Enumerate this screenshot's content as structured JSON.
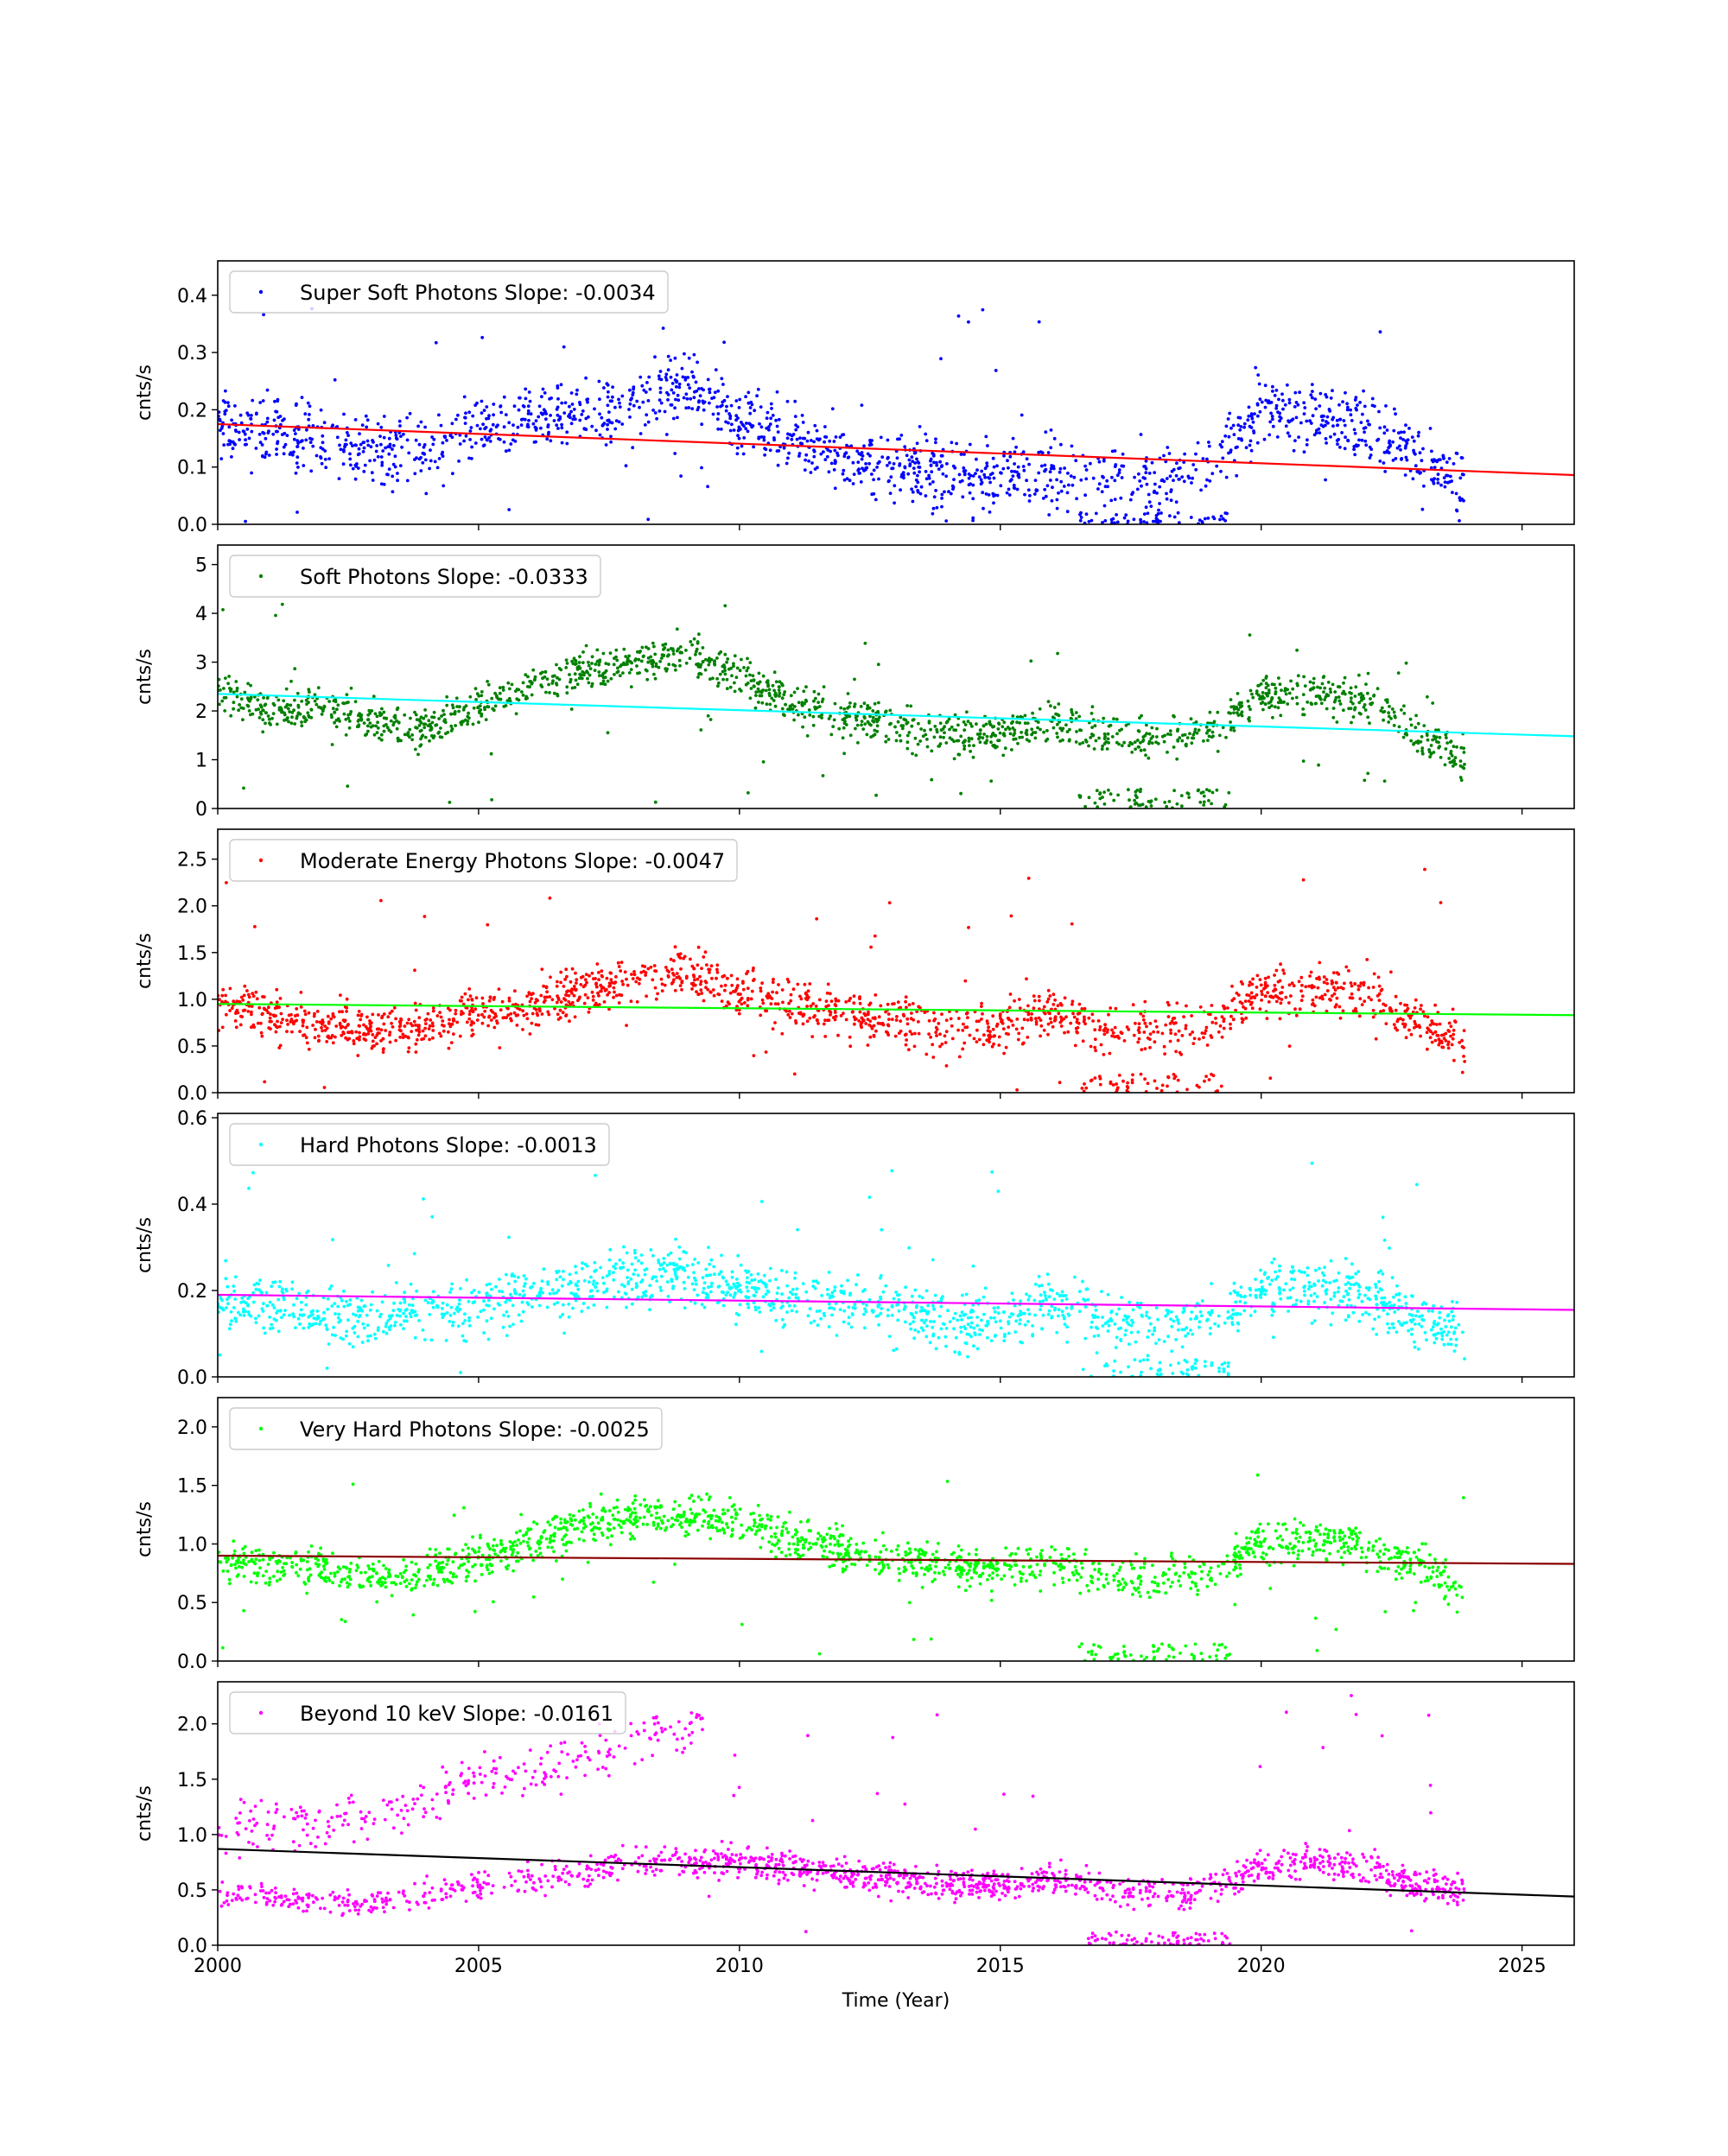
{
  "figure": {
    "xlabel": "Time (Year)",
    "x_ticks": [
      2000,
      2005,
      2010,
      2015,
      2020,
      2025
    ],
    "xlim": [
      2000,
      2026
    ]
  },
  "chart_data": [
    {
      "type": "scatter",
      "legend_label": "Super Soft Photons Slope: -0.0034",
      "legend_placement": "top-left",
      "point_color": "#0000ff",
      "fit_color": "#ff0000",
      "ylabel": "cnts/s",
      "ylim": [
        0,
        0.46
      ],
      "y_ticks": [
        0.0,
        0.1,
        0.2,
        0.3,
        0.4
      ],
      "tick_decimals": 1,
      "fit": {
        "x": [
          2000,
          2026
        ],
        "y": [
          0.175,
          0.086
        ]
      },
      "trend": [
        [
          2000,
          0.17
        ],
        [
          2001,
          0.16
        ],
        [
          2002,
          0.15
        ],
        [
          2003,
          0.12
        ],
        [
          2004,
          0.13
        ],
        [
          2005,
          0.17
        ],
        [
          2006,
          0.18
        ],
        [
          2007,
          0.19
        ],
        [
          2008,
          0.21
        ],
        [
          2009,
          0.25
        ],
        [
          2010,
          0.18
        ],
        [
          2011,
          0.15
        ],
        [
          2012,
          0.12
        ],
        [
          2013,
          0.1
        ],
        [
          2014,
          0.085
        ],
        [
          2015,
          0.085
        ],
        [
          2016,
          0.09
        ],
        [
          2017,
          0.08
        ],
        [
          2018,
          0.07
        ],
        [
          2019,
          0.08
        ],
        [
          2020,
          0.2
        ],
        [
          2021,
          0.19
        ],
        [
          2022,
          0.17
        ],
        [
          2023,
          0.11
        ],
        [
          2023.9,
          0.07
        ]
      ],
      "spread": 0.05,
      "low_cluster": [
        2016.5,
        2019.4,
        0.0,
        0.02
      ],
      "outlier_y": 0.38,
      "seed": 11
    },
    {
      "type": "scatter",
      "legend_label": "Soft Photons Slope: -0.0333",
      "legend_placement": "top-left",
      "point_color": "#008000",
      "fit_color": "#00ffff",
      "ylabel": "cnts/s",
      "ylim": [
        0,
        5.4
      ],
      "y_ticks": [
        0,
        1,
        2,
        3,
        4,
        5
      ],
      "tick_decimals": 0,
      "fit": {
        "x": [
          2000,
          2026
        ],
        "y": [
          2.35,
          1.48
        ]
      },
      "trend": [
        [
          2000,
          2.4
        ],
        [
          2001,
          2.0
        ],
        [
          2002,
          2.1
        ],
        [
          2003,
          1.8
        ],
        [
          2004,
          1.6
        ],
        [
          2005,
          2.2
        ],
        [
          2006,
          2.5
        ],
        [
          2007,
          2.8
        ],
        [
          2008,
          3.0
        ],
        [
          2009,
          3.2
        ],
        [
          2010,
          2.7
        ],
        [
          2011,
          2.2
        ],
        [
          2012,
          1.9
        ],
        [
          2013,
          1.7
        ],
        [
          2014,
          1.5
        ],
        [
          2015,
          1.5
        ],
        [
          2016,
          1.8
        ],
        [
          2017,
          1.5
        ],
        [
          2018,
          1.4
        ],
        [
          2019,
          1.6
        ],
        [
          2020,
          2.3
        ],
        [
          2021,
          2.4
        ],
        [
          2022,
          2.2
        ],
        [
          2023,
          1.5
        ],
        [
          2023.9,
          1.0
        ]
      ],
      "spread": 0.35,
      "low_cluster": [
        2016.5,
        2019.4,
        0.0,
        0.4
      ],
      "outlier_y": 4.2,
      "seed": 23
    },
    {
      "type": "scatter",
      "legend_label": "Moderate Energy Photons Slope: -0.0047",
      "legend_placement": "top-left",
      "point_color": "#ff0000",
      "fit_color": "#00ff00",
      "ylabel": "cnts/s",
      "ylim": [
        0,
        2.82
      ],
      "y_ticks": [
        0.0,
        0.5,
        1.0,
        1.5,
        2.0,
        2.5
      ],
      "tick_decimals": 1,
      "fit": {
        "x": [
          2000,
          2026
        ],
        "y": [
          0.95,
          0.83
        ]
      },
      "trend": [
        [
          2000,
          0.95
        ],
        [
          2001,
          0.8
        ],
        [
          2002,
          0.75
        ],
        [
          2003,
          0.65
        ],
        [
          2004,
          0.7
        ],
        [
          2005,
          0.85
        ],
        [
          2006,
          0.95
        ],
        [
          2007,
          1.1
        ],
        [
          2008,
          1.2
        ],
        [
          2009,
          1.3
        ],
        [
          2010,
          1.1
        ],
        [
          2011,
          0.95
        ],
        [
          2012,
          0.85
        ],
        [
          2013,
          0.75
        ],
        [
          2014,
          0.7
        ],
        [
          2015,
          0.7
        ],
        [
          2016,
          0.85
        ],
        [
          2017,
          0.65
        ],
        [
          2018,
          0.65
        ],
        [
          2019,
          0.7
        ],
        [
          2020,
          1.1
        ],
        [
          2021,
          1.1
        ],
        [
          2022,
          1.05
        ],
        [
          2023,
          0.75
        ],
        [
          2023.9,
          0.55
        ]
      ],
      "spread": 0.22,
      "low_cluster": [
        2016.5,
        2019.4,
        0.0,
        0.2
      ],
      "outlier_y": 2.4,
      "seed": 37
    },
    {
      "type": "scatter",
      "legend_label": "Hard Photons Slope: -0.0013",
      "legend_placement": "top-left",
      "point_color": "#00ffff",
      "fit_color": "#ff00ff",
      "ylabel": "cnts/s",
      "ylim": [
        0,
        0.61
      ],
      "y_ticks": [
        0.0,
        0.2,
        0.4,
        0.6
      ],
      "tick_decimals": 1,
      "fit": {
        "x": [
          2000,
          2026
        ],
        "y": [
          0.19,
          0.155
        ]
      },
      "trend": [
        [
          2000,
          0.18
        ],
        [
          2001,
          0.16
        ],
        [
          2002,
          0.15
        ],
        [
          2003,
          0.14
        ],
        [
          2004,
          0.15
        ],
        [
          2005,
          0.16
        ],
        [
          2006,
          0.19
        ],
        [
          2007,
          0.21
        ],
        [
          2008,
          0.23
        ],
        [
          2009,
          0.24
        ],
        [
          2010,
          0.2
        ],
        [
          2011,
          0.18
        ],
        [
          2012,
          0.16
        ],
        [
          2013,
          0.15
        ],
        [
          2014,
          0.13
        ],
        [
          2015,
          0.13
        ],
        [
          2016,
          0.18
        ],
        [
          2017,
          0.13
        ],
        [
          2018,
          0.12
        ],
        [
          2019,
          0.13
        ],
        [
          2020,
          0.2
        ],
        [
          2021,
          0.21
        ],
        [
          2022,
          0.19
        ],
        [
          2023,
          0.13
        ],
        [
          2023.9,
          0.11
        ]
      ],
      "spread": 0.055,
      "low_cluster": [
        2016.5,
        2019.4,
        0.0,
        0.04
      ],
      "outlier_y": 0.5,
      "seed": 41
    },
    {
      "type": "scatter",
      "legend_label": "Very Hard Photons Slope: -0.0025",
      "legend_placement": "top-left",
      "point_color": "#00ff00",
      "fit_color": "#8b0000",
      "ylabel": "cnts/s",
      "ylim": [
        0,
        2.25
      ],
      "y_ticks": [
        0.0,
        0.5,
        1.0,
        1.5,
        2.0
      ],
      "tick_decimals": 1,
      "fit": {
        "x": [
          2000,
          2026
        ],
        "y": [
          0.9,
          0.83
        ]
      },
      "trend": [
        [
          2000,
          0.85
        ],
        [
          2001,
          0.8
        ],
        [
          2002,
          0.8
        ],
        [
          2003,
          0.72
        ],
        [
          2004,
          0.75
        ],
        [
          2005,
          0.9
        ],
        [
          2006,
          1.0
        ],
        [
          2007,
          1.15
        ],
        [
          2008,
          1.25
        ],
        [
          2009,
          1.25
        ],
        [
          2010,
          1.2
        ],
        [
          2011,
          1.05
        ],
        [
          2012,
          0.95
        ],
        [
          2013,
          0.85
        ],
        [
          2014,
          0.8
        ],
        [
          2015,
          0.8
        ],
        [
          2016,
          0.85
        ],
        [
          2017,
          0.7
        ],
        [
          2018,
          0.7
        ],
        [
          2019,
          0.75
        ],
        [
          2020,
          1.0
        ],
        [
          2021,
          1.05
        ],
        [
          2022,
          1.0
        ],
        [
          2023,
          0.8
        ],
        [
          2023.9,
          0.6
        ]
      ],
      "spread": 0.15,
      "low_cluster": [
        2016.5,
        2019.4,
        0.0,
        0.15
      ],
      "outlier_y": 1.6,
      "seed": 53
    },
    {
      "type": "scatter",
      "legend_label": "Beyond 10 keV Slope: -0.0161",
      "legend_placement": "top-left",
      "point_color": "#ff00ff",
      "fit_color": "#000000",
      "ylabel": "cnts/s",
      "ylim": [
        0,
        2.38
      ],
      "y_ticks": [
        0.0,
        0.5,
        1.0,
        1.5,
        2.0
      ],
      "tick_decimals": 1,
      "fit": {
        "x": [
          2000,
          2026
        ],
        "y": [
          0.87,
          0.44
        ]
      },
      "trend": [
        [
          2000,
          0.5
        ],
        [
          2001,
          0.45
        ],
        [
          2002,
          0.4
        ],
        [
          2003,
          0.38
        ],
        [
          2004,
          0.45
        ],
        [
          2005,
          0.55
        ],
        [
          2006,
          0.6
        ],
        [
          2007,
          0.65
        ],
        [
          2008,
          0.75
        ],
        [
          2009,
          0.75
        ],
        [
          2010,
          0.75
        ],
        [
          2011,
          0.7
        ],
        [
          2012,
          0.65
        ],
        [
          2013,
          0.6
        ],
        [
          2014,
          0.55
        ],
        [
          2015,
          0.55
        ],
        [
          2016,
          0.6
        ],
        [
          2017,
          0.5
        ],
        [
          2018,
          0.45
        ],
        [
          2019,
          0.5
        ],
        [
          2020,
          0.7
        ],
        [
          2021,
          0.75
        ],
        [
          2022,
          0.7
        ],
        [
          2023,
          0.55
        ],
        [
          2023.9,
          0.5
        ]
      ],
      "spread": 0.12,
      "upper_band": [
        [
          2000,
          1.1
        ],
        [
          2002,
          1.1
        ],
        [
          2004,
          1.3
        ],
        [
          2005,
          1.5
        ],
        [
          2006,
          1.55
        ],
        [
          2007,
          1.7
        ],
        [
          2008,
          1.85
        ],
        [
          2009.3,
          2.0
        ]
      ],
      "low_cluster": [
        2016.5,
        2019.4,
        0.0,
        0.12
      ],
      "outlier_y": 2.3,
      "seed": 67
    }
  ]
}
